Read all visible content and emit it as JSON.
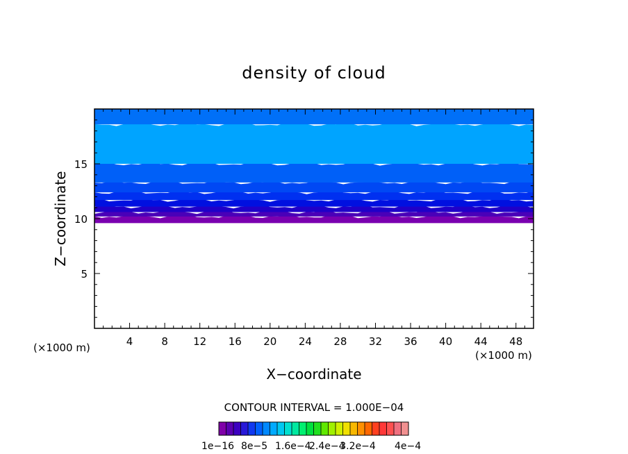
{
  "chart_data": {
    "type": "heatmap",
    "title": "density of cloud",
    "xlabel": "X−coordinate",
    "ylabel": "Z−coordinate",
    "x_unit_left": "(×1000 m)",
    "x_unit_right": "(×1000 m)",
    "xlim": [
      0,
      50
    ],
    "ylim": [
      0,
      20
    ],
    "x_ticks": [
      4,
      8,
      12,
      16,
      20,
      24,
      28,
      32,
      36,
      40,
      44,
      48
    ],
    "y_ticks": [
      5,
      10,
      15
    ],
    "contour_interval_label": "CONTOUR INTERVAL = 1.000E−04",
    "colorbar": {
      "labels": [
        "1e−16",
        "8e−5",
        "1.6e−4",
        "2.4e−4",
        "3.2e−4",
        "4e−4"
      ],
      "colors": [
        "#7f00a8",
        "#5a00b0",
        "#3c00c0",
        "#2818d8",
        "#1038f0",
        "#0060ff",
        "#0088ff",
        "#00aaff",
        "#00c8f0",
        "#00e0d0",
        "#00e8a0",
        "#00f070",
        "#00e040",
        "#20e020",
        "#60e800",
        "#a0f000",
        "#d0f000",
        "#f0e000",
        "#f8b800",
        "#ff9000",
        "#ff6800",
        "#ff4020",
        "#ff3838",
        "#ff5050",
        "#f07080",
        "#f09090"
      ]
    },
    "bands": [
      {
        "z_top": 10.2,
        "z_bottom": 9.6,
        "color": "#7a00b0"
      },
      {
        "z_top": 10.6,
        "z_bottom": 10.2,
        "color": "#4a00b8"
      },
      {
        "z_top": 11.1,
        "z_bottom": 10.6,
        "color": "#2000c8"
      },
      {
        "z_top": 11.7,
        "z_bottom": 11.1,
        "color": "#0010e0"
      },
      {
        "z_top": 12.4,
        "z_bottom": 11.7,
        "color": "#0030f0"
      },
      {
        "z_top": 13.3,
        "z_bottom": 12.4,
        "color": "#0048f4"
      },
      {
        "z_top": 15.0,
        "z_bottom": 13.3,
        "color": "#0060f8"
      },
      {
        "z_top": 18.6,
        "z_bottom": 15.0,
        "color": "#00a4ff"
      },
      {
        "z_top": 20.0,
        "z_bottom": 18.6,
        "color": "#0070f8"
      }
    ]
  }
}
